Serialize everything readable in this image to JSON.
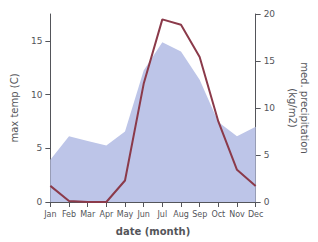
{
  "chart_data": {
    "type": "line",
    "xlabel": "date (month)",
    "ylabel": "max temp (C)",
    "y2label": "med. precipitation\n(kg/m2)",
    "categories": [
      "Jan",
      "Feb",
      "Mar",
      "Apr",
      "May",
      "Jun",
      "Jul",
      "Aug",
      "Sep",
      "Oct",
      "Nov",
      "Dec"
    ],
    "series": [
      {
        "type": "area",
        "axis": "y2",
        "color": "#bdc5e8",
        "values": [
          4.5,
          7.0,
          6.5,
          6.0,
          7.5,
          14.0,
          17.0,
          16.0,
          13.0,
          8.5,
          7.0,
          8.0
        ]
      },
      {
        "type": "line",
        "color": "#8b3a4a",
        "values": [
          1.5,
          0.1,
          0.0,
          0.0,
          2.0,
          11.0,
          17.0,
          16.5,
          13.5,
          7.5,
          3.0,
          1.5
        ]
      }
    ],
    "ylim": [
      0,
      17.5
    ],
    "yticks": [
      0,
      5,
      10,
      15
    ],
    "y2lim": [
      0,
      20
    ],
    "y2ticks": [
      0,
      5,
      10,
      15,
      20
    ],
    "grid": false
  }
}
